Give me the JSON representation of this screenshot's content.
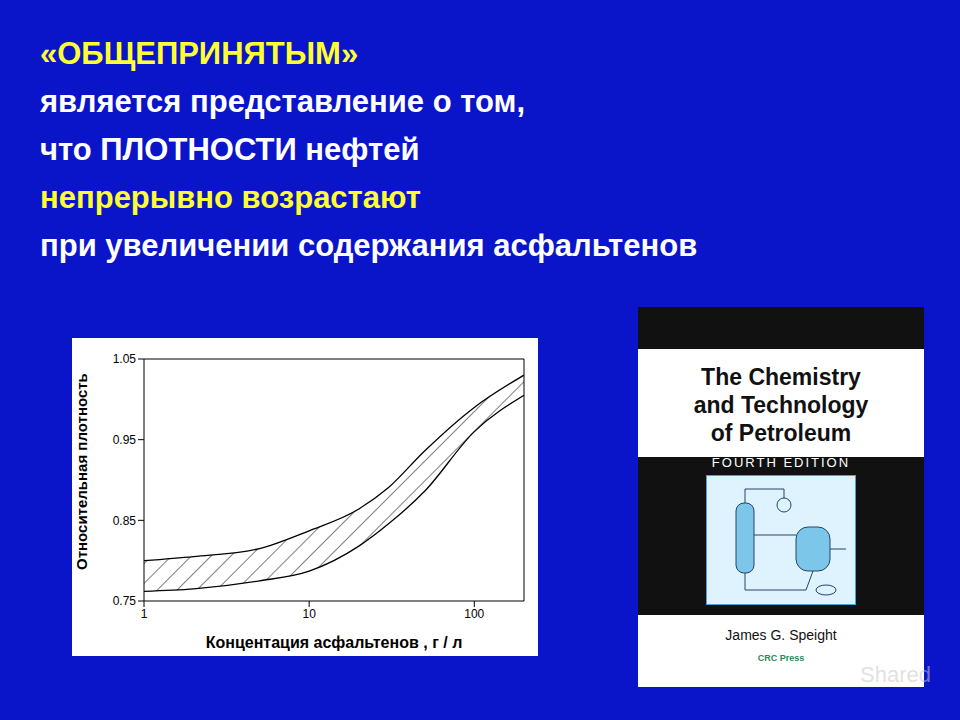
{
  "slide": {
    "background": "#0a14c8",
    "title_lines": [
      {
        "text": "«ОБЩЕПРИНЯТЫМ»",
        "color": "#ffff33"
      },
      {
        "text": "является представление о том,",
        "color": "#ffffff"
      },
      {
        "text": "что ПЛОТНОСТИ нефтей",
        "color": "#ffffff"
      },
      {
        "text": "непрерывно возрастают",
        "color": "#ffff33"
      },
      {
        "text": "при увеличении содержания асфальтенов",
        "color": "#ffffff"
      }
    ],
    "watermark": "Shared"
  },
  "chart_data": {
    "type": "area",
    "x_label": "Концентация асфальтенов , г / л",
    "y_label": "Относительная плотность",
    "log": "x",
    "x": [
      1,
      2,
      5,
      10,
      20,
      30,
      50,
      100,
      200
    ],
    "series": [
      {
        "color": "#000000",
        "values": [
          0.762,
          0.765,
          0.775,
          0.787,
          0.818,
          0.845,
          0.886,
          0.96,
          1.005
        ]
      },
      {
        "color": "#000000",
        "values": [
          0.8,
          0.805,
          0.815,
          0.837,
          0.864,
          0.89,
          0.936,
          0.99,
          1.03
        ]
      }
    ],
    "xlim": [
      1,
      200
    ],
    "xticks": [
      1,
      10,
      100
    ],
    "ylim": [
      0.75,
      1.05
    ],
    "yticks": [
      0.75,
      0.85,
      0.95,
      1.05
    ]
  },
  "book": {
    "title_lines": [
      "The Chemistry",
      "and Technology",
      "of Petroleum"
    ],
    "edition": "FOURTH EDITION",
    "author": "James G. Speight",
    "publisher": "CRC Press"
  }
}
